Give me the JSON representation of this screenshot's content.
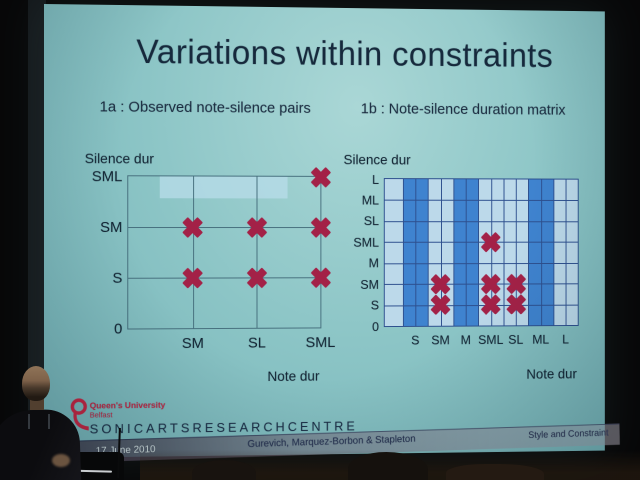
{
  "slide": {
    "title": "Variations within constraints",
    "footer": {
      "university": "Queen's University",
      "city": "Belfast",
      "centre_name": "SONICARTSRESEARCHCENTRE",
      "date": "17 June 2010",
      "authors": "Gurevich, Marquez-Borbon & Stapleton",
      "presentation_title": "Style and Constraint"
    }
  },
  "colors": {
    "slide_background": "#8cc5c6",
    "title_text": "#16293c",
    "marker_red": "#a32147",
    "logo_red": "#c22441"
  },
  "chart_data": [
    {
      "type": "scatter",
      "title": "1a : Observed note-silence pairs",
      "xlabel": "Note dur",
      "ylabel": "Silence dur",
      "x_categories": [
        "SM",
        "SL",
        "SML"
      ],
      "y_categories_bottom_to_top": [
        "0",
        "S",
        "SM",
        "SML"
      ],
      "points": [
        [
          "SM",
          "S"
        ],
        [
          "SM",
          "SM"
        ],
        [
          "SL",
          "S"
        ],
        [
          "SL",
          "SM"
        ],
        [
          "SML",
          "S"
        ],
        [
          "SML",
          "SM"
        ],
        [
          "SML",
          "SML"
        ]
      ],
      "marker": "heavy-x",
      "marker_color": "#a32147",
      "grid": true,
      "highlight_band": {
        "y_row": "SML",
        "x_span": [
          "SM",
          "SL"
        ],
        "color": "#b8dcea",
        "note": "pale shaded strip just below the SML gridline"
      }
    },
    {
      "type": "scatter",
      "title": "1b : Note-silence duration matrix",
      "xlabel": "Note dur",
      "ylabel": "Silence dur",
      "x_categories": [
        "S",
        "SM",
        "M",
        "SML",
        "SL",
        "ML",
        "L"
      ],
      "y_categories_bottom_to_top": [
        "0",
        "S",
        "SM",
        "M",
        "SML",
        "SL",
        "ML",
        "L"
      ],
      "points": [
        [
          "SM",
          "S"
        ],
        [
          "SM",
          "SM"
        ],
        [
          "SML",
          "S"
        ],
        [
          "SML",
          "SM"
        ],
        [
          "SML",
          "SML"
        ],
        [
          "SL",
          "S"
        ],
        [
          "SL",
          "SM"
        ]
      ],
      "marker": "heavy-x",
      "marker_color": "#a32147",
      "grid": true,
      "plot_bg": "#bcd9ea",
      "shaded_note_columns": [
        "S",
        "M",
        "ML"
      ],
      "shaded_column_color": "#3f83cf",
      "grid_color": "#2d4f8e"
    }
  ]
}
